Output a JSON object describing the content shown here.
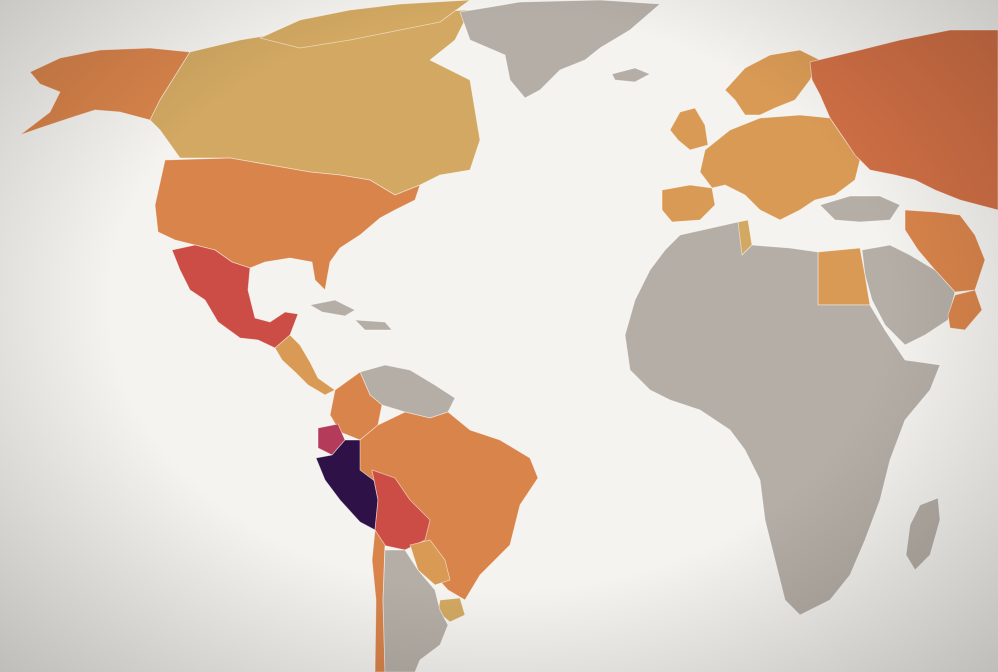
{
  "map": {
    "background_color": "#f4f3ef",
    "palette": {
      "no_data": "#b5aea6",
      "low": "#d2a862",
      "low_mid": "#d99a55",
      "mid": "#d9844b",
      "mid_high": "#cf6f45",
      "high": "#cc4d45",
      "very_high": "#b53b5a",
      "extreme": "#2e1247"
    },
    "regions": [
      {
        "id": "canada",
        "level": "low"
      },
      {
        "id": "alaska",
        "level": "mid"
      },
      {
        "id": "usa",
        "level": "mid"
      },
      {
        "id": "greenland",
        "level": "no_data"
      },
      {
        "id": "mexico",
        "level": "high"
      },
      {
        "id": "central-america",
        "level": "low_mid"
      },
      {
        "id": "colombia",
        "level": "mid"
      },
      {
        "id": "venezuela-guianas",
        "level": "no_data"
      },
      {
        "id": "ecuador",
        "level": "very_high"
      },
      {
        "id": "peru",
        "level": "extreme"
      },
      {
        "id": "brazil",
        "level": "mid"
      },
      {
        "id": "bolivia",
        "level": "high"
      },
      {
        "id": "paraguay",
        "level": "low_mid"
      },
      {
        "id": "uruguay",
        "level": "low"
      },
      {
        "id": "argentina",
        "level": "no_data"
      },
      {
        "id": "chile",
        "level": "mid"
      },
      {
        "id": "europe",
        "level": "low_mid"
      },
      {
        "id": "scandinavia",
        "level": "low_mid"
      },
      {
        "id": "uk-ireland",
        "level": "low_mid"
      },
      {
        "id": "iberia",
        "level": "low_mid"
      },
      {
        "id": "russia",
        "level": "mid_high"
      },
      {
        "id": "turkey",
        "level": "no_data"
      },
      {
        "id": "iran",
        "level": "mid"
      },
      {
        "id": "egypt",
        "level": "low_mid"
      },
      {
        "id": "tunisia",
        "level": "low"
      },
      {
        "id": "africa",
        "level": "no_data"
      },
      {
        "id": "madagascar",
        "level": "no_data"
      },
      {
        "id": "arabia",
        "level": "no_data"
      },
      {
        "id": "oman",
        "level": "mid"
      },
      {
        "id": "iceland",
        "level": "no_data"
      },
      {
        "id": "arctic-islands",
        "level": "low"
      },
      {
        "id": "caribbean",
        "level": "no_data"
      }
    ]
  }
}
